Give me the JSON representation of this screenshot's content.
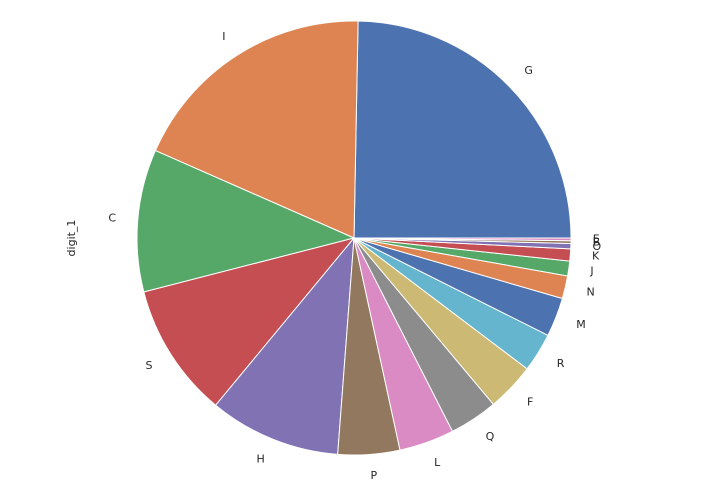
{
  "chart_data": {
    "type": "pie",
    "ylabel": "digit_1",
    "categories": [
      "G",
      "I",
      "C",
      "S",
      "H",
      "P",
      "L",
      "Q",
      "F",
      "R",
      "M",
      "N",
      "J",
      "K",
      "O",
      "B",
      "E"
    ],
    "values": [
      24.7,
      18.7,
      10.6,
      10.0,
      9.8,
      4.6,
      4.1,
      3.6,
      3.6,
      2.9,
      2.9,
      1.7,
      1.1,
      0.9,
      0.4,
      0.2,
      0.2
    ],
    "colors": [
      "#4c72b0",
      "#dd8452",
      "#55a868",
      "#c44e52",
      "#8172b3",
      "#937860",
      "#da8bc3",
      "#8c8c8c",
      "#ccb974",
      "#64b5cd",
      "#4c72b0",
      "#dd8452",
      "#55a868",
      "#c44e52",
      "#8172b3",
      "#937860",
      "#da8bc3"
    ],
    "startangle": 0,
    "counterclock": true
  }
}
